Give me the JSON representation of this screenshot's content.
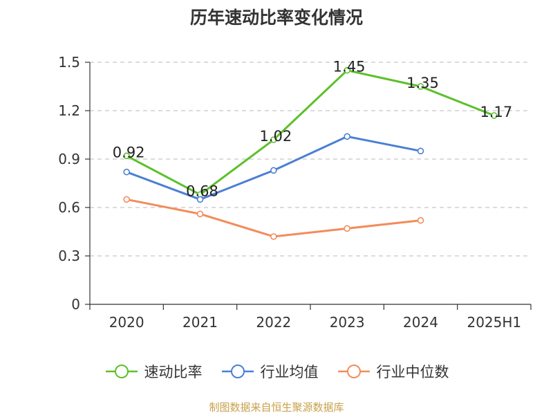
{
  "chart_data": {
    "type": "line",
    "title": "历年速动比率变化情况",
    "categories": [
      "2020",
      "2021",
      "2022",
      "2023",
      "2024",
      "2025H1"
    ],
    "y_ticks": [
      "0",
      "0.3",
      "0.6",
      "0.9",
      "1.2",
      "1.5"
    ],
    "ylim": [
      0,
      1.5
    ],
    "grid": "horizontal-dashed",
    "legend_position": "bottom",
    "series": [
      {
        "name": "速动比率",
        "color": "#5cc02a",
        "values": [
          0.92,
          0.68,
          1.02,
          1.45,
          1.35,
          1.17
        ],
        "labels": [
          "0.92",
          "0.68",
          "1.02",
          "1.45",
          "1.35",
          "1.17"
        ]
      },
      {
        "name": "行业均值",
        "color": "#4a7fd4",
        "values": [
          0.82,
          0.65,
          0.83,
          1.04,
          0.95,
          null
        ]
      },
      {
        "name": "行业中位数",
        "color": "#f28c5a",
        "values": [
          0.65,
          0.56,
          0.42,
          0.47,
          0.52,
          null
        ]
      }
    ],
    "source": "制图数据来自恒生聚源数据库"
  }
}
